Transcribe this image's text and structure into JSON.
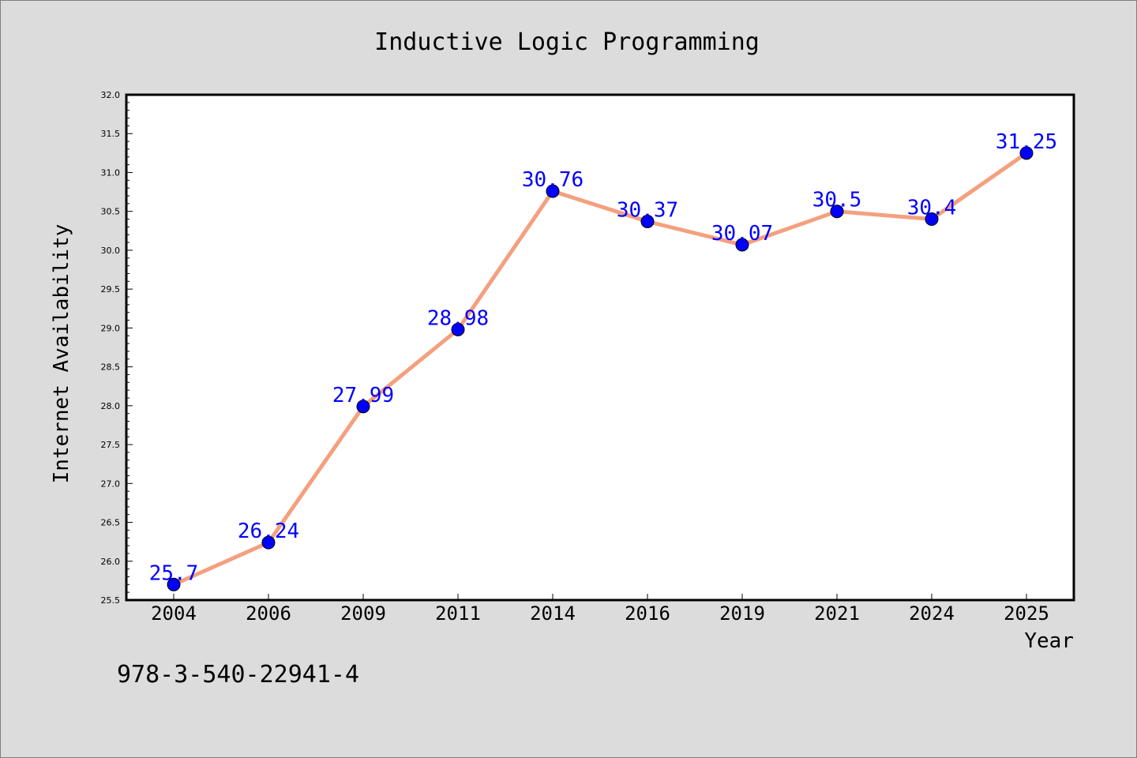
{
  "chart_data": {
    "type": "line",
    "title": "Inductive Logic Programming",
    "xlabel": "Year",
    "ylabel": "Internet Availability",
    "categories": [
      "2004",
      "2006",
      "2009",
      "2011",
      "2014",
      "2016",
      "2019",
      "2021",
      "2024",
      "2025"
    ],
    "series": [
      {
        "values": [
          25.7,
          26.24,
          27.99,
          28.98,
          30.76,
          30.37,
          30.07,
          30.5,
          30.4,
          31.25
        ]
      }
    ],
    "data_labels": [
      "25.7",
      "26.24",
      "27.99",
      "28.98",
      "30.76",
      "30.37",
      "30.07",
      "30.5",
      "30.4",
      "31.25"
    ],
    "ylim": [
      25.5,
      32.0
    ],
    "yticks": [
      "25.5",
      "26.0",
      "26.5",
      "27.0",
      "27.5",
      "28.0",
      "28.5",
      "29.0",
      "29.5",
      "30.0",
      "30.5",
      "31.0",
      "31.5",
      "32.0"
    ],
    "grid": false,
    "line_color": "#f4a07f",
    "marker_color": "#0000ff",
    "label_color": "#0000ff"
  },
  "footer": {
    "isbn": "978-3-540-22941-4"
  }
}
